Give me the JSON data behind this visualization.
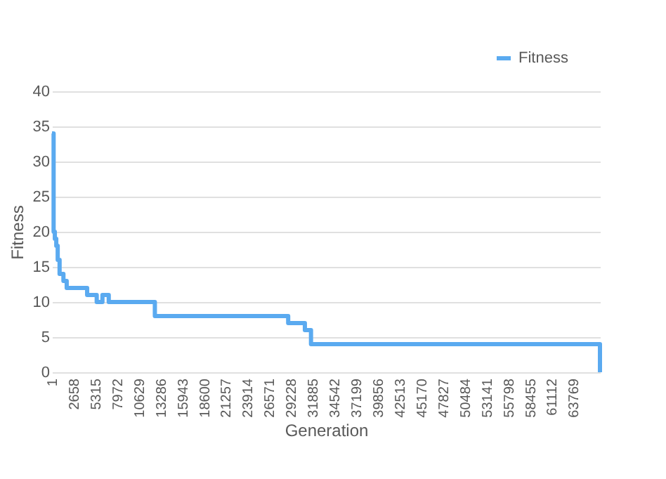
{
  "chart_data": {
    "type": "step",
    "xlabel": "Generation",
    "ylabel": "Fitness",
    "x": [
      1,
      200,
      350,
      525,
      700,
      930,
      1400,
      1800,
      4300,
      5470,
      6170,
      6940,
      12580,
      28880,
      30920,
      31670,
      67000,
      67000
    ],
    "series": [
      {
        "name": "Fitness",
        "color": "#5aaaf0",
        "values": [
          34,
          20,
          19,
          18,
          16,
          14,
          13,
          12,
          11,
          10,
          11,
          10,
          8,
          7,
          6,
          4,
          4,
          0
        ]
      }
    ],
    "xlim": [
      1,
      67000
    ],
    "xticks": [
      1,
      2658,
      5315,
      7972,
      10629,
      13286,
      15943,
      18600,
      21257,
      23914,
      26571,
      29228,
      31885,
      34542,
      37199,
      39856,
      42513,
      45170,
      47827,
      50484,
      53141,
      55798,
      58455,
      61112,
      63769
    ],
    "ylim": [
      0,
      40
    ],
    "yticks": [
      0,
      5,
      10,
      15,
      20,
      25,
      30,
      35,
      40
    ],
    "grid": "y",
    "legend": "top right",
    "line_style": "solid",
    "marker": "none"
  }
}
